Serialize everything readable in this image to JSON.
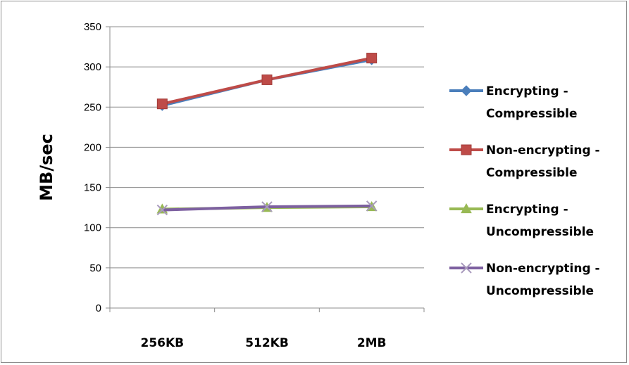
{
  "chart_data": {
    "type": "line",
    "categories": [
      "256KB",
      "512KB",
      "2MB"
    ],
    "ylabel": "MB/sec",
    "xlabel": "",
    "title": "",
    "ylim": [
      0,
      350
    ],
    "yticks": [
      0,
      50,
      100,
      150,
      200,
      250,
      300,
      350
    ],
    "grid": true,
    "legend_position": "right",
    "series": [
      {
        "name": "Encrypting - Compressible",
        "name_lines": [
          "Encrypting -",
          "Compressible"
        ],
        "values": [
          252,
          284,
          309
        ],
        "color": "#4a7ebb",
        "marker": "diamond"
      },
      {
        "name": "Non-encrypting - Compressible",
        "name_lines": [
          "Non-encrypting -",
          "Compressible"
        ],
        "values": [
          254,
          284,
          311
        ],
        "color": "#be4b48",
        "marker": "square"
      },
      {
        "name": "Encrypting - Uncompressible",
        "name_lines": [
          "Encrypting -",
          "Uncompressible"
        ],
        "values": [
          123,
          125,
          126
        ],
        "color": "#98b954",
        "marker": "triangle"
      },
      {
        "name": "Non-encrypting - Uncompressible",
        "name_lines": [
          "Non-encrypting -",
          "Uncompressible"
        ],
        "values": [
          122,
          126,
          127
        ],
        "color": "#7d60a0",
        "marker": "x"
      }
    ]
  }
}
